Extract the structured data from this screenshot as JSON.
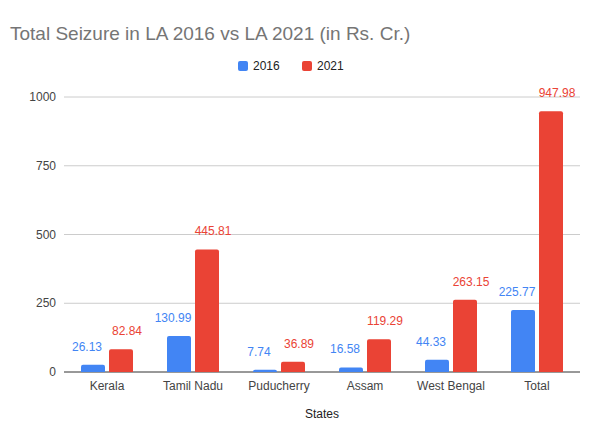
{
  "chart_data": {
    "type": "bar",
    "title": "Total Seizure in LA 2016 vs LA 2021 (in Rs. Cr.)",
    "x_label": "States",
    "categories": [
      "Kerala",
      "Tamil Nadu",
      "Puducherry",
      "Assam",
      "West Bengal",
      "Total"
    ],
    "series": [
      {
        "name": "2016",
        "color": "#4285f4",
        "values": [
          26.13,
          130.99,
          7.74,
          16.58,
          44.33,
          225.77
        ]
      },
      {
        "name": "2021",
        "color": "#ea4335",
        "values": [
          82.84,
          445.81,
          36.89,
          119.29,
          263.15,
          947.98
        ]
      }
    ],
    "ylim": [
      0,
      1000
    ],
    "yticks": [
      0,
      250,
      500,
      750,
      1000
    ],
    "grid": true,
    "legend": "top",
    "data_labels": true
  }
}
